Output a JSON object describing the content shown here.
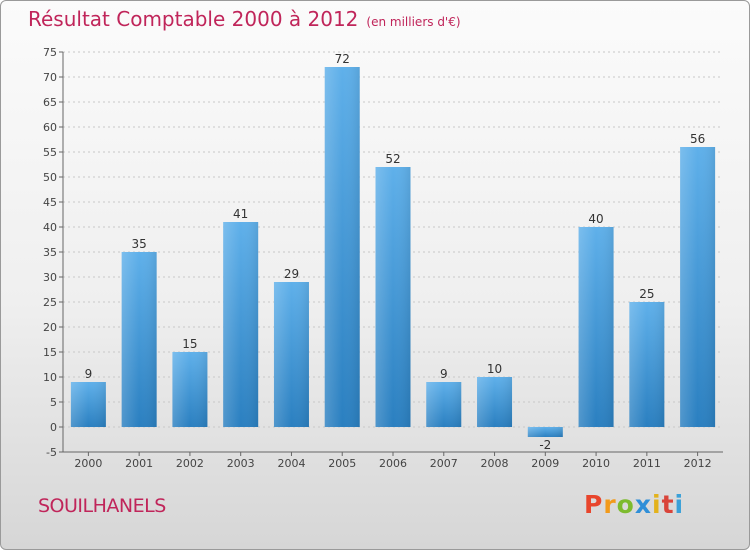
{
  "title": "Résultat Comptable 2000 à 2012",
  "subtitle": "(en milliers d'€)",
  "location_label": "SOUILHANELS",
  "brand": {
    "letters": [
      "P",
      "r",
      "o",
      "x",
      "i",
      "t",
      "i"
    ],
    "colors": [
      "#e8452c",
      "#f29a1a",
      "#7dbb2e",
      "#2f8fd8",
      "#e3b21c",
      "#d9443a",
      "#3aa0d8"
    ]
  },
  "colors": {
    "title": "#c0255a",
    "bar_top": "#5fb0ea",
    "bar_bottom": "#2a7fc0",
    "axis": "#555555"
  },
  "chart_data": {
    "type": "bar",
    "title": "Résultat Comptable 2000 à 2012",
    "subtitle": "(en milliers d'€)",
    "xlabel": "",
    "ylabel": "",
    "categories": [
      "2000",
      "2001",
      "2002",
      "2003",
      "2004",
      "2005",
      "2006",
      "2007",
      "2008",
      "2009",
      "2010",
      "2011",
      "2012"
    ],
    "values": [
      9,
      35,
      15,
      41,
      29,
      72,
      52,
      9,
      10,
      -2,
      40,
      25,
      56
    ],
    "ylim": [
      -5,
      75
    ],
    "yticks": [
      -5,
      0,
      5,
      10,
      15,
      20,
      25,
      30,
      35,
      40,
      45,
      50,
      55,
      60,
      65,
      70,
      75
    ],
    "grid": true,
    "legend": "none"
  }
}
